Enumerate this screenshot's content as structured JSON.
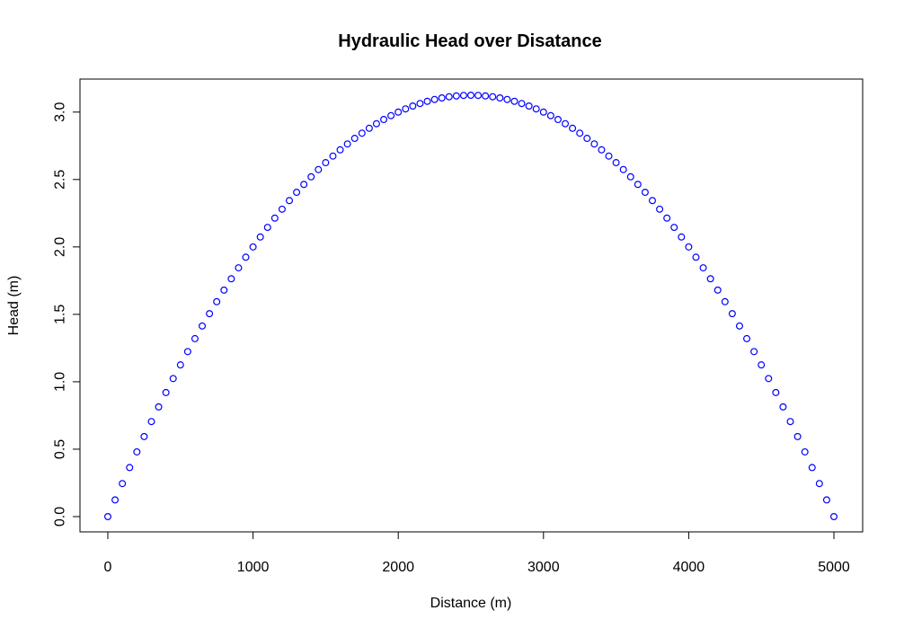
{
  "chart_data": {
    "type": "scatter",
    "title": "Hydraulic Head over Disatance",
    "xlabel": "Distance (m)",
    "ylabel": "Head (m)",
    "xlim": [
      0,
      5000
    ],
    "ylim": [
      0,
      3.125
    ],
    "x_ticks": [
      0,
      1000,
      2000,
      3000,
      4000,
      5000
    ],
    "x_tick_labels": [
      "0",
      "1000",
      "2000",
      "3000",
      "4000",
      "5000"
    ],
    "y_ticks": [
      0,
      0.5,
      1,
      1.5,
      2,
      2.5,
      3
    ],
    "y_tick_labels": [
      "0.0",
      "0.5",
      "1.0",
      "1.5",
      "2.0",
      "2.5",
      "3.0"
    ],
    "grid": false,
    "marker": "open-circle",
    "colors": {
      "points": "#0000ff",
      "axes": "#000000",
      "background": "#ffffff"
    },
    "series": [
      {
        "x": [
          0,
          50,
          100,
          150,
          200,
          250,
          300,
          350,
          400,
          450,
          500,
          550,
          600,
          650,
          700,
          750,
          800,
          850,
          900,
          950,
          1000,
          1050,
          1100,
          1150,
          1200,
          1250,
          1300,
          1350,
          1400,
          1450,
          1500,
          1550,
          1600,
          1650,
          1700,
          1750,
          1800,
          1850,
          1900,
          1950,
          2000,
          2050,
          2100,
          2150,
          2200,
          2250,
          2300,
          2350,
          2400,
          2450,
          2500,
          2550,
          2600,
          2650,
          2700,
          2750,
          2800,
          2850,
          2900,
          2950,
          3000,
          3050,
          3100,
          3150,
          3200,
          3250,
          3300,
          3350,
          3400,
          3450,
          3500,
          3550,
          3600,
          3650,
          3700,
          3750,
          3800,
          3850,
          3900,
          3950,
          4000,
          4050,
          4100,
          4150,
          4200,
          4250,
          4300,
          4350,
          4400,
          4450,
          4500,
          4550,
          4600,
          4650,
          4700,
          4750,
          4800,
          4850,
          4900,
          4950,
          5000
        ],
        "y": [
          0,
          0.12375,
          0.245,
          0.36375,
          0.48,
          0.59375,
          0.705,
          0.81375,
          0.92,
          1.02375,
          1.125,
          1.22375,
          1.32,
          1.41375,
          1.505,
          1.59375,
          1.68,
          1.76375,
          1.845,
          1.92375,
          2,
          2.07375,
          2.145,
          2.21375,
          2.28,
          2.34375,
          2.405,
          2.46375,
          2.52,
          2.57375,
          2.625,
          2.67375,
          2.72,
          2.76375,
          2.805,
          2.84375,
          2.88,
          2.91375,
          2.945,
          2.97375,
          3,
          3.02375,
          3.045,
          3.06375,
          3.08,
          3.09375,
          3.105,
          3.11375,
          3.12,
          3.12375,
          3.125,
          3.12375,
          3.12,
          3.11375,
          3.105,
          3.09375,
          3.08,
          3.06375,
          3.045,
          3.02375,
          3,
          2.97375,
          2.945,
          2.91375,
          2.88,
          2.84375,
          2.805,
          2.76375,
          2.72,
          2.67375,
          2.625,
          2.57375,
          2.52,
          2.46375,
          2.405,
          2.34375,
          2.28,
          2.21375,
          2.145,
          2.07375,
          2,
          1.92375,
          1.845,
          1.76375,
          1.68,
          1.59375,
          1.505,
          1.41375,
          1.32,
          1.22375,
          1.125,
          1.02375,
          0.92,
          0.81375,
          0.705,
          0.59375,
          0.48,
          0.36375,
          0.245,
          0.12375,
          0
        ]
      }
    ]
  }
}
